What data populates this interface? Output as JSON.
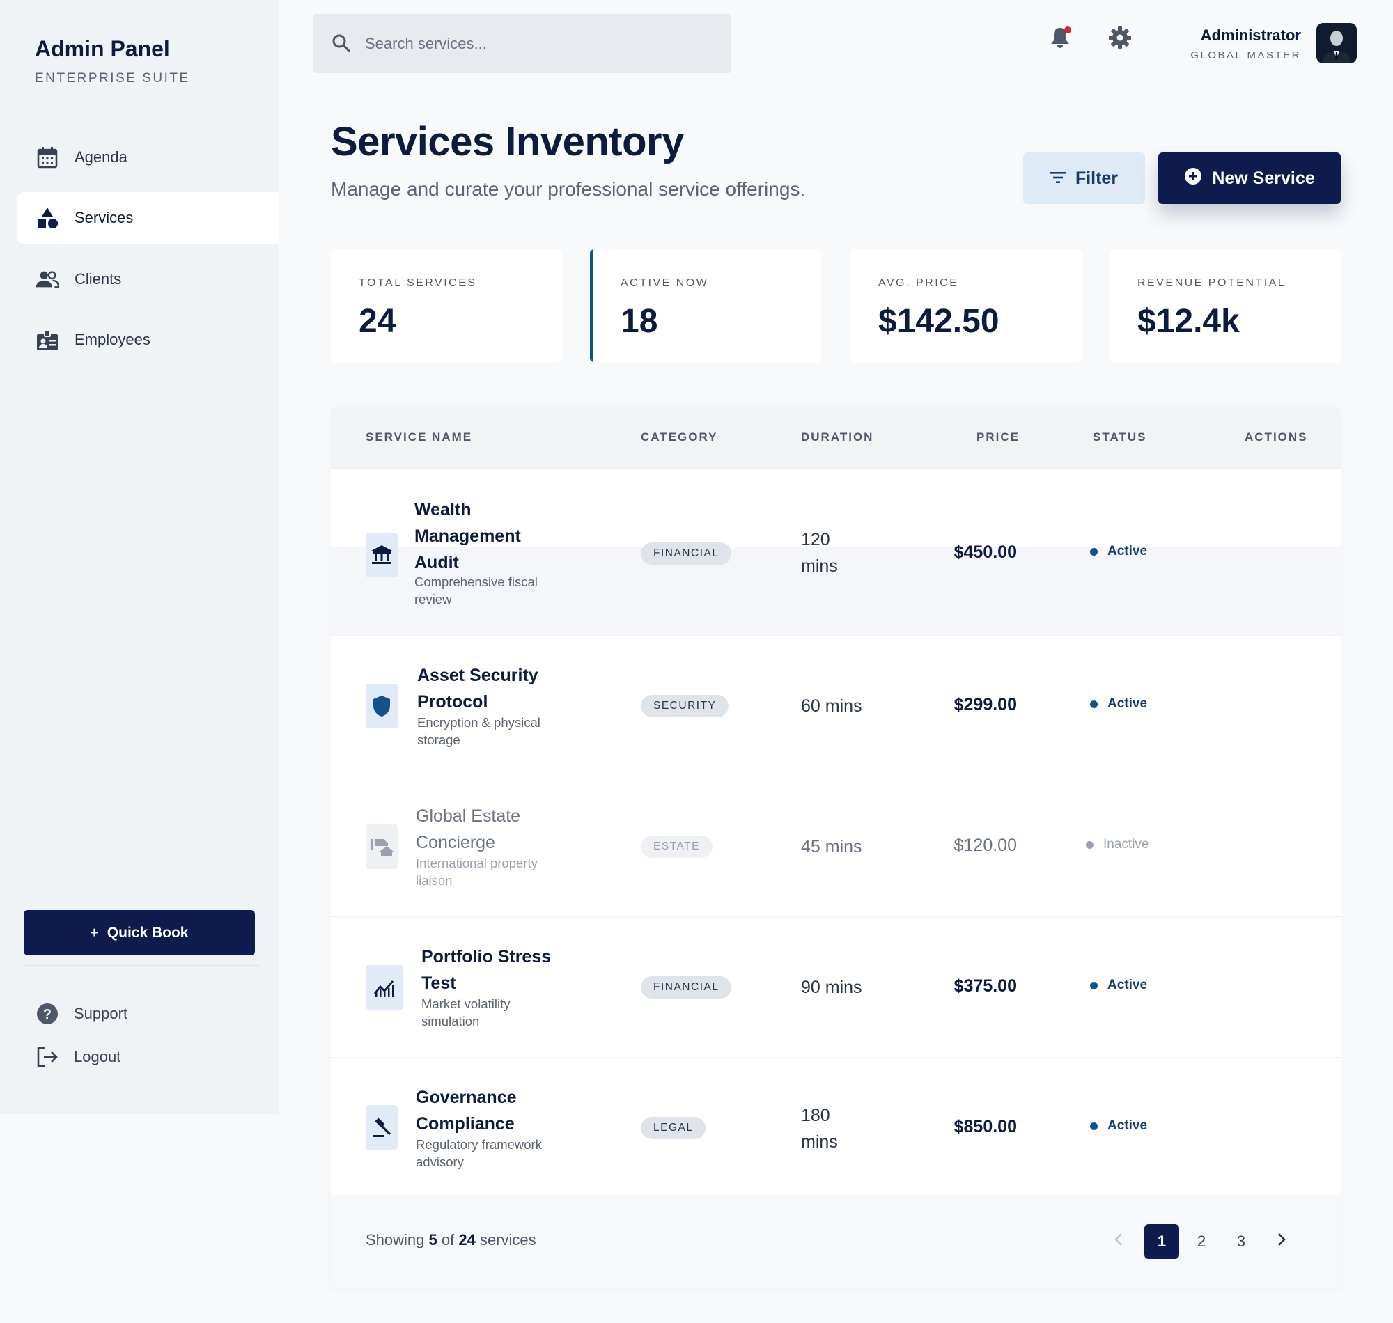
{
  "sidebar": {
    "brand": "Admin Panel",
    "brand_sub": "ENTERPRISE SUITE",
    "nav": [
      {
        "label": "Agenda",
        "icon": "calendar-icon"
      },
      {
        "label": "Services",
        "icon": "shapes-icon",
        "active": true
      },
      {
        "label": "Clients",
        "icon": "people-icon"
      },
      {
        "label": "Employees",
        "icon": "badge-icon"
      }
    ],
    "quick_book": "Quick Book",
    "support": "Support",
    "logout": "Logout"
  },
  "topbar": {
    "search_placeholder": "Search services...",
    "user_name": "Administrator",
    "user_role": "GLOBAL MASTER"
  },
  "header": {
    "title": "Services Inventory",
    "subtitle": "Manage and curate your professional service offerings.",
    "filter_label": "Filter",
    "new_label": "New Service"
  },
  "stats": [
    {
      "label": "TOTAL SERVICES",
      "value": "24"
    },
    {
      "label": "ACTIVE NOW",
      "value": "18"
    },
    {
      "label": "AVG. PRICE",
      "value": "$142.50"
    },
    {
      "label": "REVENUE POTENTIAL",
      "value": "$12.4k"
    }
  ],
  "table": {
    "columns": [
      "SERVICE NAME",
      "CATEGORY",
      "DURATION",
      "PRICE",
      "STATUS",
      "ACTIONS"
    ],
    "rows": [
      {
        "name": "Wealth Management Audit",
        "desc": "Comprehensive fiscal review",
        "category": "FINANCIAL",
        "duration": "120 mins",
        "price": "$450.00",
        "status": "Active",
        "icon": "bank-icon"
      },
      {
        "name": "Asset Security Protocol",
        "desc": "Encryption & physical storage",
        "category": "SECURITY",
        "duration": "60 mins",
        "price": "$299.00",
        "status": "Active",
        "icon": "shield-icon"
      },
      {
        "name": "Global Estate Concierge",
        "desc": "International property liaison",
        "category": "ESTATE",
        "duration": "45 mins",
        "price": "$120.00",
        "status": "Inactive",
        "icon": "real-estate-icon"
      },
      {
        "name": "Portfolio Stress Test",
        "desc": "Market volatility simulation",
        "category": "FINANCIAL",
        "duration": "90 mins",
        "price": "$375.00",
        "status": "Active",
        "icon": "chart-icon"
      },
      {
        "name": "Governance Compliance",
        "desc": "Regulatory framework advisory",
        "category": "LEGAL",
        "duration": "180 mins",
        "price": "$850.00",
        "status": "Active",
        "icon": "gavel-icon"
      }
    ]
  },
  "footer": {
    "showing_prefix": "Showing",
    "showing_count": "5",
    "showing_of": "of",
    "showing_total": "24",
    "showing_suffix": "services",
    "pages": [
      "1",
      "2",
      "3"
    ],
    "current_page": "1"
  },
  "colors": {
    "navy": "#0d1b4d",
    "accent_blue": "#155089",
    "notification": "#d6262b"
  }
}
